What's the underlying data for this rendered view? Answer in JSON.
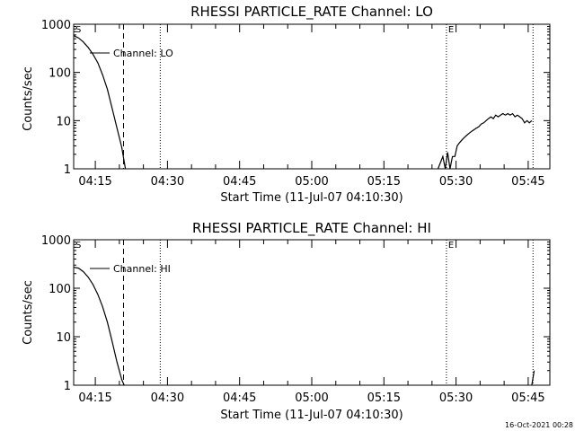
{
  "footer_timestamp": "16-Oct-2021 00:28",
  "chart_data": [
    {
      "type": "line",
      "title": "RHESSI PARTICLE_RATE Channel: LO",
      "xlabel": "Start Time (11-Jul-07 04:10:30)",
      "ylabel": "Counts/sec",
      "legend": "Channel: LO",
      "yscale": "log",
      "ylim": [
        1,
        1000
      ],
      "xlim": [
        "04:10:30",
        "05:49:30"
      ],
      "x_ticks": [
        "04:15",
        "04:30",
        "04:45",
        "05:00",
        "05:15",
        "05:30",
        "05:45"
      ],
      "y_ticks": [
        "1",
        "10",
        "100",
        "1000"
      ],
      "markers": [
        {
          "label": "S",
          "x": "04:10:30",
          "style": "dotted"
        },
        {
          "label": "",
          "x": "04:20:52",
          "style": "dashed"
        },
        {
          "label": "",
          "x": "04:28:30",
          "style": "dotted"
        },
        {
          "label": "E",
          "x": "05:28:00",
          "style": "dotted"
        },
        {
          "label": "",
          "x": "05:46:00",
          "style": "dotted"
        }
      ],
      "series": [
        {
          "name": "Channel: LO",
          "segments": [
            {
              "x": [
                "04:10:30",
                "04:11:30",
                "04:12:30",
                "04:13:30",
                "04:14:30",
                "04:15:30",
                "04:16:30",
                "04:17:30",
                "04:18:30",
                "04:19:30",
                "04:20:30",
                "04:21:15"
              ],
              "y": [
                580,
                520,
                430,
                330,
                240,
                160,
                90,
                45,
                18,
                7,
                2.8,
                1
              ]
            },
            {
              "x": [
                "05:26:15",
                "05:27:15",
                "05:27:45",
                "05:28:15",
                "05:28:45",
                "05:29:15",
                "05:29:45",
                "05:30:15",
                "05:30:45",
                "05:31:15",
                "05:31:45",
                "05:32:15",
                "05:32:45",
                "05:33:15",
                "05:33:45",
                "05:34:15",
                "05:34:45",
                "05:35:15",
                "05:35:45",
                "05:36:15",
                "05:36:45",
                "05:37:15",
                "05:37:45",
                "05:38:15",
                "05:38:45",
                "05:39:15",
                "05:39:45",
                "05:40:15",
                "05:40:45",
                "05:41:15",
                "05:41:45",
                "05:42:15",
                "05:42:45",
                "05:43:15",
                "05:43:45",
                "05:44:15",
                "05:44:45",
                "05:45:15",
                "05:45:45"
              ],
              "y": [
                1,
                1.8,
                1,
                2.2,
                1,
                1.8,
                1.8,
                3,
                3.5,
                4,
                4.5,
                5,
                5.5,
                6,
                6.5,
                7,
                7.5,
                8.5,
                9,
                10,
                11,
                12,
                11,
                13,
                12,
                13,
                14,
                13,
                14,
                13,
                14,
                12,
                13,
                12,
                11,
                9,
                10,
                9,
                10
              ]
            }
          ]
        }
      ]
    },
    {
      "type": "line",
      "title": "RHESSI PARTICLE_RATE Channel: HI",
      "xlabel": "Start Time (11-Jul-07 04:10:30)",
      "ylabel": "Counts/sec",
      "legend": "Channel: HI",
      "yscale": "log",
      "ylim": [
        1,
        1000
      ],
      "xlim": [
        "04:10:30",
        "05:49:30"
      ],
      "x_ticks": [
        "04:15",
        "04:30",
        "04:45",
        "05:00",
        "05:15",
        "05:30",
        "05:45"
      ],
      "y_ticks": [
        "1",
        "10",
        "100",
        "1000"
      ],
      "markers": [
        {
          "label": "S",
          "x": "04:10:30",
          "style": "dotted"
        },
        {
          "label": "",
          "x": "04:20:52",
          "style": "dashed"
        },
        {
          "label": "",
          "x": "04:28:30",
          "style": "dotted"
        },
        {
          "label": "E",
          "x": "05:28:00",
          "style": "dotted"
        },
        {
          "label": "",
          "x": "05:46:00",
          "style": "dotted"
        }
      ],
      "series": [
        {
          "name": "Channel: HI",
          "segments": [
            {
              "x": [
                "04:10:30",
                "04:11:30",
                "04:12:30",
                "04:13:30",
                "04:14:30",
                "04:15:30",
                "04:16:30",
                "04:17:30",
                "04:18:30",
                "04:19:30",
                "04:20:30",
                "04:21:00"
              ],
              "y": [
                270,
                260,
                220,
                170,
                120,
                75,
                42,
                20,
                8,
                3,
                1.3,
                1
              ]
            },
            {
              "x": [
                "05:45:45",
                "05:46:15"
              ],
              "y": [
                1,
                2
              ]
            }
          ]
        }
      ]
    }
  ]
}
